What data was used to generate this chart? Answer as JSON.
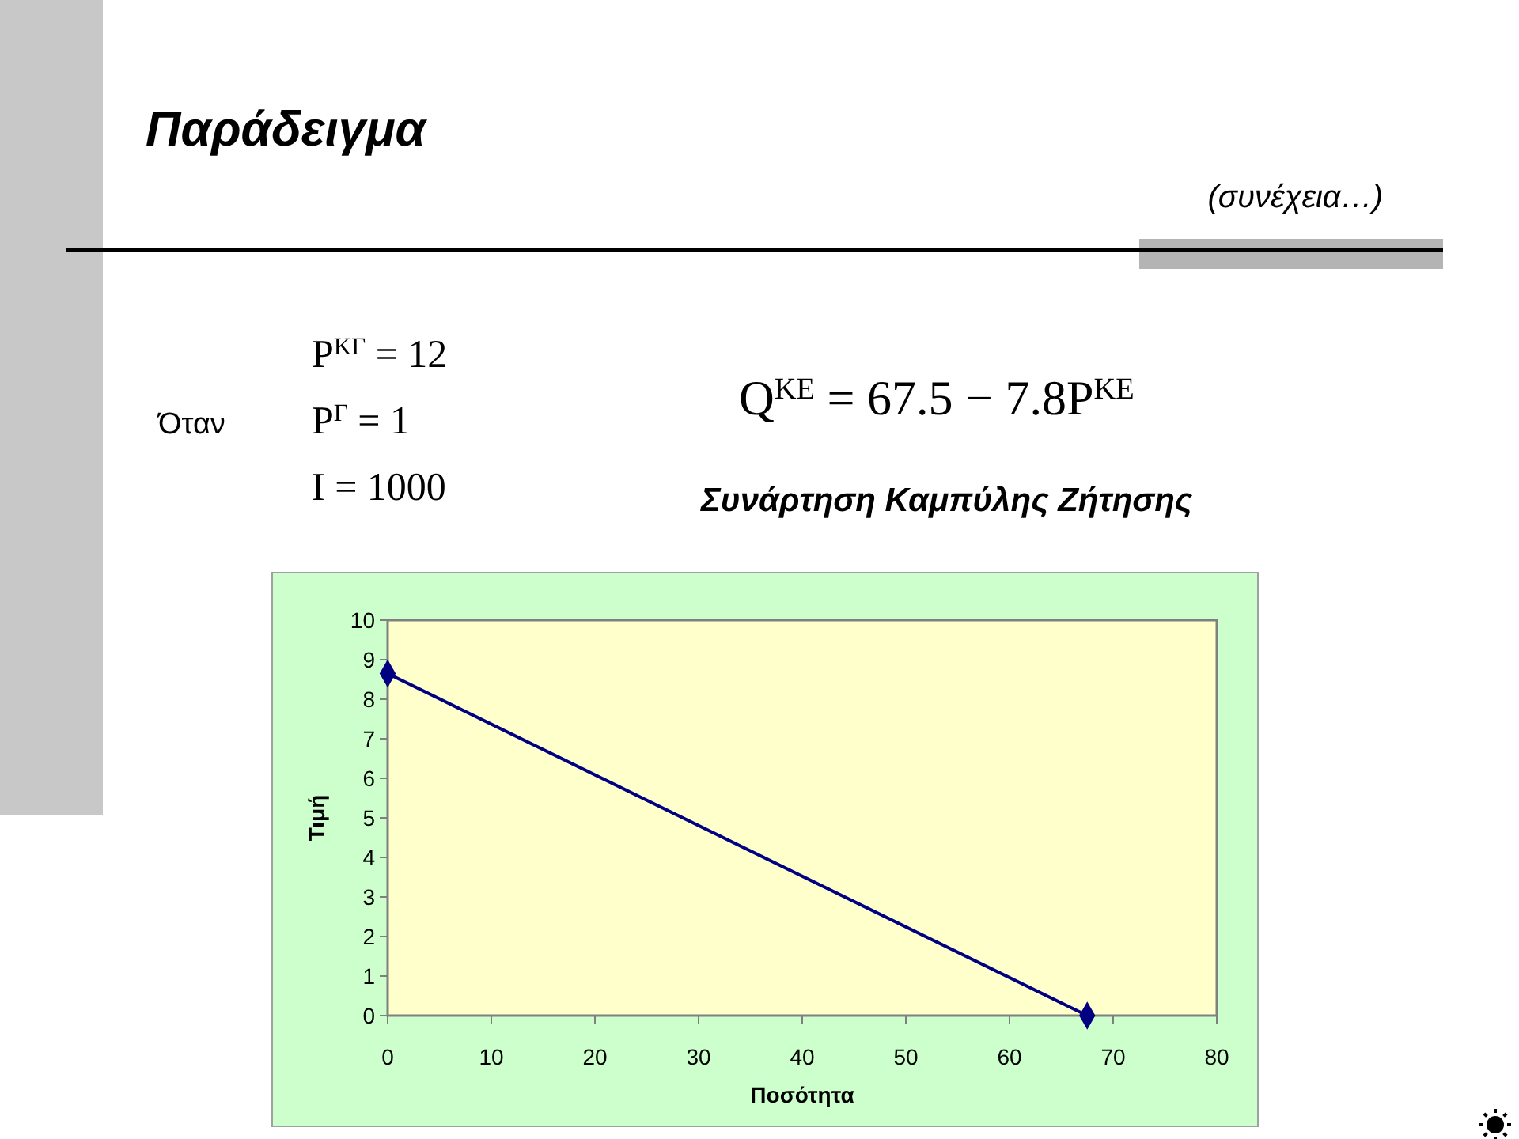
{
  "chart_data": {
    "type": "line",
    "title": "Παράδειγμα",
    "subtitle": "(συνέχεια…)",
    "annotations": [
      "Όταν",
      "P$^{ΚΓ}$ = 12",
      "P$^{Γ}$ = 1",
      "I = 1000",
      "Q$^{ΚΕ}$ = 67.5 − 7.8P$^{ΚΕ}$",
      "Συνάρτηση Καμπύλης Ζήτησης"
    ],
    "xlabel": "Ποσότητα",
    "ylabel": "Τιμή",
    "x": [
      0,
      67.5
    ],
    "values": [
      8.65,
      0
    ],
    "color": "#000080",
    "marker": "diamond",
    "xlim": [
      0,
      80
    ],
    "xticks": [
      0,
      10,
      20,
      30,
      40,
      50,
      60,
      70,
      80
    ],
    "ylim": [
      0,
      10
    ],
    "yticks": [
      0,
      1,
      2,
      3,
      4,
      5,
      6,
      7,
      8,
      9,
      10
    ]
  }
}
